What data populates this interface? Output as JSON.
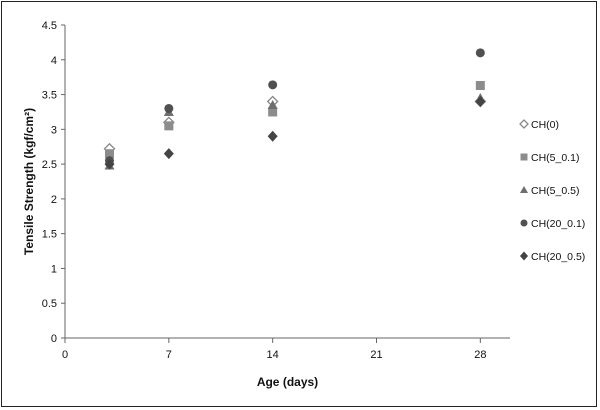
{
  "chart_data": {
    "type": "scatter",
    "xlabel": "Age (days)",
    "ylabel": "Tensile  Strength  (kgf/cm²)",
    "xlim": [
      0,
      30
    ],
    "ylim": [
      0,
      4.5
    ],
    "xticks": [
      "0",
      "7",
      "14",
      "21",
      "28"
    ],
    "yticks": [
      "0",
      "0.5",
      "1",
      "1.5",
      "2",
      "2.5",
      "3",
      "3.5",
      "4",
      "4.5"
    ],
    "grid": false,
    "legend_position": "right",
    "x": [
      3,
      7,
      14,
      28
    ],
    "series": [
      {
        "name": "CH(0)",
        "marker": "diamond-open",
        "color": "#888888",
        "values": [
          2.72,
          3.1,
          3.4,
          3.4
        ]
      },
      {
        "name": "CH(5_0.1)",
        "marker": "square",
        "color": "#8c8c8c",
        "values": [
          2.65,
          3.05,
          3.25,
          3.63
        ]
      },
      {
        "name": "CH(5_0.5)",
        "marker": "triangle",
        "color": "#6e6e6e",
        "values": [
          2.48,
          3.25,
          3.35,
          3.45
        ]
      },
      {
        "name": "CH(20_0.1)",
        "marker": "circle",
        "color": "#505050",
        "values": [
          2.55,
          3.3,
          3.64,
          4.1
        ]
      },
      {
        "name": "CH(20_0.5)",
        "marker": "diamond",
        "color": "#444444",
        "values": [
          2.5,
          2.65,
          2.9,
          3.4
        ]
      }
    ]
  }
}
